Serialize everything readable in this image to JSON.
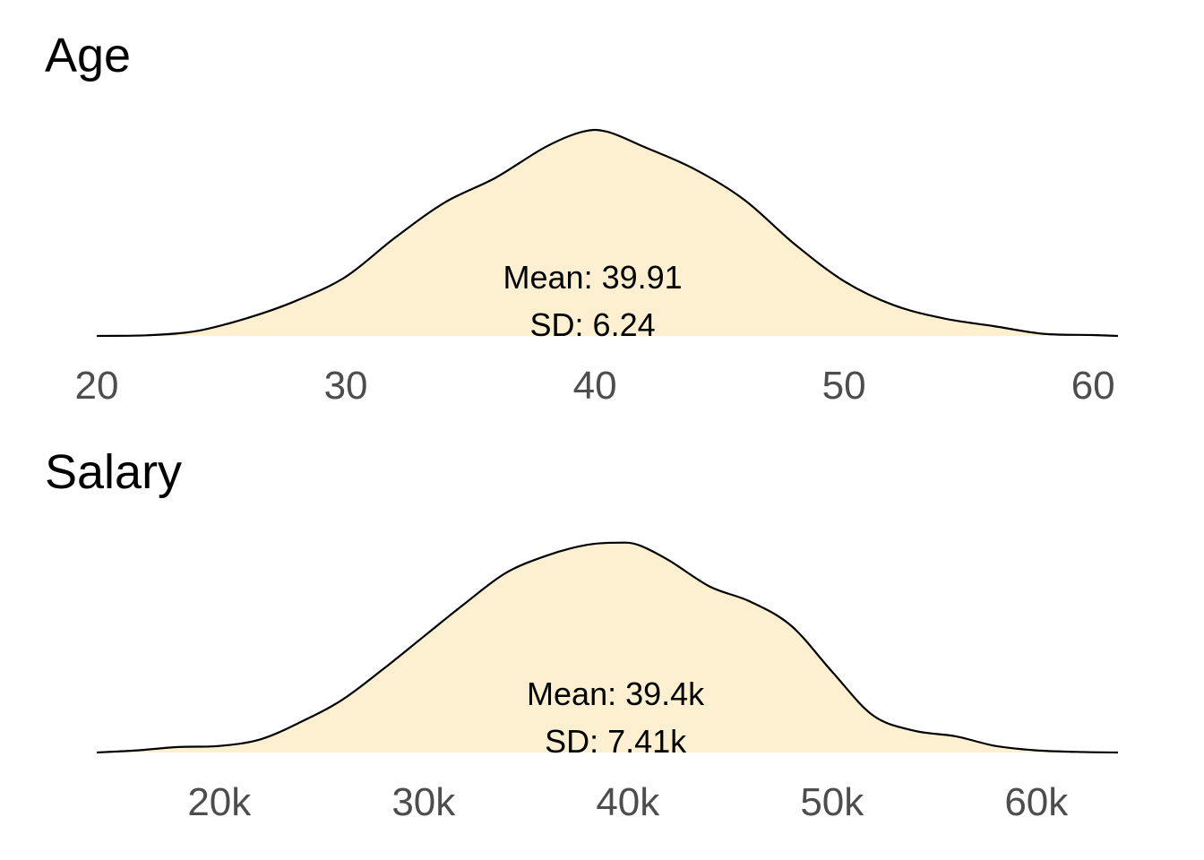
{
  "chart_data": [
    {
      "type": "area",
      "title": "Age",
      "xlim": [
        20,
        61
      ],
      "xticks": [
        20,
        30,
        40,
        50,
        60
      ],
      "tick_labels": [
        "20",
        "30",
        "40",
        "50",
        "60"
      ],
      "fill": "#fcf0d0",
      "x": [
        20,
        22,
        24,
        26,
        28,
        30,
        32,
        34,
        36,
        38,
        39.5,
        40.5,
        42,
        44,
        46,
        48,
        50,
        52,
        54,
        56,
        58,
        60,
        61
      ],
      "y": [
        0.0,
        0.003,
        0.022,
        0.08,
        0.16,
        0.27,
        0.45,
        0.61,
        0.72,
        0.86,
        0.93,
        0.93,
        0.86,
        0.76,
        0.62,
        0.42,
        0.25,
        0.14,
        0.08,
        0.045,
        0.01,
        0.004,
        0.0
      ],
      "annotations": [
        "Mean: 39.91",
        "SD: 6.24"
      ]
    },
    {
      "type": "area",
      "title": "Salary",
      "xlim": [
        14000,
        64000
      ],
      "xticks": [
        20000,
        30000,
        40000,
        50000,
        60000
      ],
      "tick_labels": [
        "20k",
        "30k",
        "40k",
        "50k",
        "60k"
      ],
      "fill": "#fcf0d0",
      "x": [
        14000,
        16000,
        18000,
        20000,
        22000,
        24000,
        26000,
        28000,
        30000,
        32000,
        34000,
        36000,
        38000,
        39500,
        40500,
        42000,
        44000,
        46000,
        48000,
        50000,
        52000,
        54000,
        56000,
        58000,
        60000,
        62000,
        64000
      ],
      "y": [
        0.0,
        0.01,
        0.025,
        0.03,
        0.06,
        0.14,
        0.24,
        0.38,
        0.53,
        0.68,
        0.82,
        0.9,
        0.95,
        0.96,
        0.95,
        0.88,
        0.76,
        0.69,
        0.58,
        0.37,
        0.17,
        0.1,
        0.075,
        0.03,
        0.01,
        0.003,
        0.0
      ],
      "annotations": [
        "Mean: 39.4k",
        "SD: 7.41k"
      ]
    }
  ]
}
